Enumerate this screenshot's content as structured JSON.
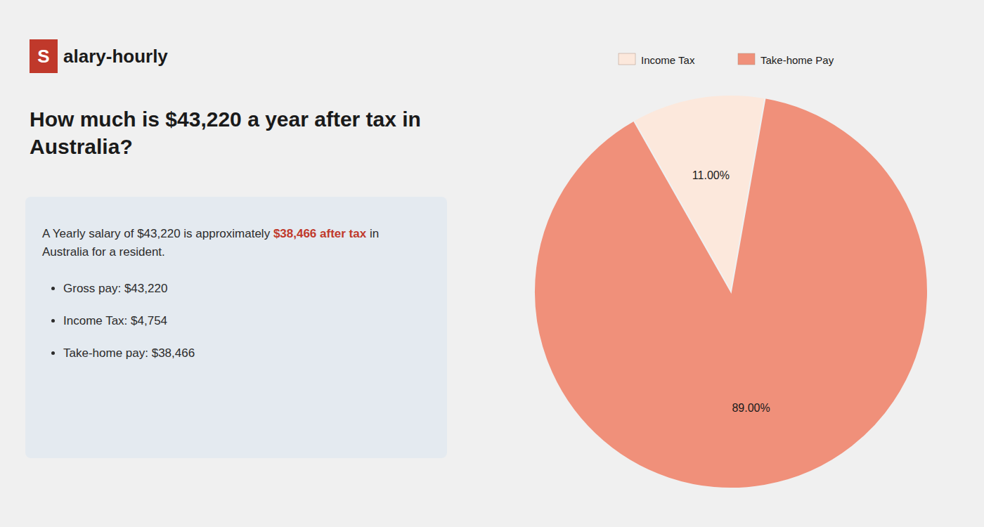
{
  "chart_data": {
    "type": "pie",
    "title": "How much is $43,220 a year after tax in Australia?",
    "annotations": [
      "S",
      "alary-hourly",
      "A Yearly salary of $43,220 is approximately ",
      "$38,466 after tax",
      " in",
      "Australia for a resident.",
      "Gross pay: $43,220",
      "Income Tax: $4,754",
      "Take-home pay: $38,466"
    ],
    "categories": [
      "Income Tax",
      "Take-home Pay"
    ],
    "values": [
      11.0,
      89.0
    ],
    "value_labels": [
      "11.00%",
      "89.00%"
    ],
    "colors": [
      "#fce8dc",
      "#f0907a"
    ],
    "data_labels": true,
    "legend": "top"
  }
}
